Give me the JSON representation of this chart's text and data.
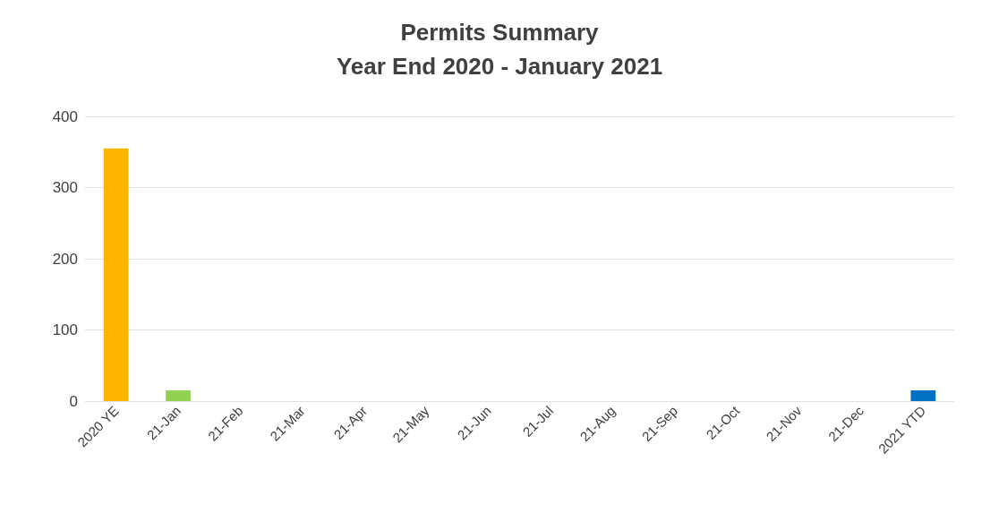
{
  "chart_data": {
    "type": "bar",
    "title": "Permits Summary\nYear End 2020 - January 2021",
    "categories": [
      "2020 YE",
      "21-Jan",
      "21-Feb",
      "21-Mar",
      "21-Apr",
      "21-May",
      "21-Jun",
      "21-Jul",
      "21-Aug",
      "21-Sep",
      "21-Oct",
      "21-Nov",
      "21-Dec",
      "2021 YTD"
    ],
    "values": [
      355,
      15,
      null,
      null,
      null,
      null,
      null,
      null,
      null,
      null,
      null,
      null,
      null,
      15
    ],
    "colors": [
      "#ffb400",
      "#92d050",
      "#92d050",
      "#92d050",
      "#92d050",
      "#92d050",
      "#92d050",
      "#92d050",
      "#92d050",
      "#92d050",
      "#92d050",
      "#92d050",
      "#92d050",
      "#0070c0"
    ],
    "ylim": [
      0,
      400
    ],
    "yticks": [
      0,
      100,
      200,
      300,
      400
    ],
    "grid": "y"
  }
}
